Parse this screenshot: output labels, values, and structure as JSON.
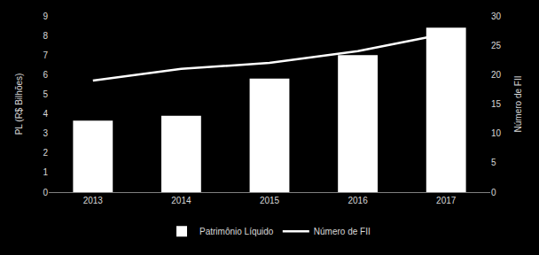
{
  "chart_data": {
    "type": "bar",
    "categories": [
      "2013",
      "2014",
      "2015",
      "2016",
      "2017"
    ],
    "series": [
      {
        "name": "Patrimônio Líquido",
        "type": "bar",
        "color": "#ffffff",
        "values": [
          3.65,
          3.9,
          5.8,
          7.0,
          8.4
        ]
      },
      {
        "name": "Número de FII",
        "type": "line",
        "axis": "y2",
        "color": "#ffffff",
        "values": [
          19,
          21,
          22,
          24,
          27
        ]
      }
    ],
    "ylabel": "PL (R$ Bilhões)",
    "y2label": "Número de FII",
    "ylim": [
      0,
      9
    ],
    "yticks": [
      0,
      1,
      2,
      3,
      4,
      5,
      6,
      7,
      8,
      9
    ],
    "y2lim": [
      0,
      30
    ],
    "y2ticks": [
      0,
      5,
      10,
      15,
      20,
      25,
      30
    ],
    "legend": "bottom",
    "grid": false
  }
}
